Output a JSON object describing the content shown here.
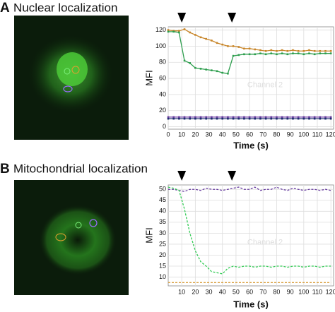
{
  "chart_data": [
    {
      "type": "line",
      "panel": "A",
      "title": "Nuclear localization",
      "xlabel": "Time (s)",
      "ylabel": "MFI",
      "annotation": "Channel 2",
      "x": [
        0,
        4,
        8,
        12,
        16,
        20,
        24,
        28,
        32,
        36,
        40,
        44,
        48,
        52,
        56,
        60,
        64,
        68,
        72,
        76,
        80,
        84,
        88,
        92,
        96,
        100,
        104,
        108,
        112,
        116,
        120
      ],
      "series": [
        {
          "color": "#c8862a",
          "dashed": false,
          "values": [
            120,
            119,
            119,
            121,
            117,
            114,
            111,
            109,
            107,
            104,
            102,
            100,
            100,
            99,
            97,
            97,
            96,
            95,
            94,
            95,
            94,
            95,
            94,
            95,
            94,
            94,
            95,
            94,
            94,
            94,
            94
          ]
        },
        {
          "color": "#2e9e4e",
          "dashed": false,
          "values": [
            118,
            118,
            117,
            82,
            79,
            73,
            72,
            71,
            70,
            69,
            67,
            66,
            88,
            89,
            90,
            90,
            90,
            91,
            90,
            91,
            90,
            91,
            90,
            91,
            91,
            90,
            91,
            90,
            91,
            91,
            91
          ]
        },
        {
          "color": "#6a3fa0",
          "dashed": false,
          "values": [
            12,
            12,
            12,
            12,
            12,
            12,
            12,
            12,
            12,
            12,
            12,
            12,
            12,
            12,
            12,
            12,
            12,
            12,
            12,
            12,
            12,
            12,
            12,
            12,
            12,
            12,
            12,
            12,
            12,
            12,
            12
          ]
        },
        {
          "color": "#1c2a6e",
          "dashed": false,
          "values": [
            10,
            10,
            10,
            10,
            10,
            10,
            10,
            10,
            10,
            10,
            10,
            10,
            10,
            10,
            10,
            10,
            10,
            10,
            10,
            10,
            10,
            10,
            10,
            10,
            10,
            10,
            10,
            10,
            10,
            10,
            10
          ]
        }
      ],
      "markers_x": [
        10,
        47
      ],
      "xlim": [
        0,
        122
      ],
      "ylim": [
        -3,
        124
      ],
      "xticks": [
        0,
        10,
        20,
        30,
        40,
        50,
        60,
        70,
        80,
        90,
        100,
        110,
        120
      ],
      "yticks": [
        0,
        20,
        40,
        60,
        80,
        100,
        120
      ],
      "grid": true
    },
    {
      "type": "line",
      "panel": "B",
      "title": "Mitochondrial localization",
      "xlabel": "Time (s)",
      "ylabel": "MFI",
      "annotation": "Channel 2",
      "x": [
        0,
        4,
        8,
        12,
        16,
        20,
        24,
        28,
        32,
        36,
        40,
        44,
        48,
        52,
        56,
        60,
        64,
        68,
        72,
        76,
        80,
        84,
        88,
        92,
        96,
        100,
        104,
        108,
        112,
        116,
        120
      ],
      "series": [
        {
          "color": "#6a3fa0",
          "dashed": true,
          "values": [
            50,
            50,
            49.5,
            49,
            50,
            50,
            49.5,
            50.5,
            50,
            50,
            49.5,
            50,
            50.5,
            51,
            50,
            50,
            51,
            49.5,
            50,
            50,
            51,
            50,
            49.5,
            50.5,
            50,
            49.5,
            50,
            50,
            49.5,
            50,
            49.5
          ]
        },
        {
          "color": "#33cc55",
          "dashed": true,
          "values": [
            51,
            50.5,
            49.5,
            41,
            30,
            22,
            17,
            15,
            12.5,
            12,
            11.5,
            14,
            15,
            14.5,
            15,
            15,
            14.5,
            15,
            15,
            14.5,
            15,
            15,
            14.5,
            15,
            15,
            14.5,
            15,
            15,
            14.5,
            15,
            15
          ]
        },
        {
          "color": "#d9a040",
          "dashed": true,
          "values": [
            7.5,
            7.5,
            7.5,
            7.5,
            7.5,
            7.5,
            7.5,
            7.5,
            7.5,
            7.5,
            7.5,
            7.5,
            7.5,
            7.5,
            7.5,
            7.5,
            7.5,
            7.5,
            7.5,
            7.5,
            7.5,
            7.5,
            7.5,
            7.5,
            7.5,
            7.5,
            7.5,
            7.5,
            7.5,
            7.5,
            7.5
          ]
        }
      ],
      "markers_x": [
        10,
        47
      ],
      "xlim": [
        0,
        122
      ],
      "ylim": [
        6,
        52
      ],
      "xticks": [
        10,
        20,
        30,
        40,
        50,
        60,
        70,
        80,
        90,
        100,
        110,
        120
      ],
      "yticks": [
        10,
        15,
        20,
        25,
        30,
        35,
        40,
        45,
        50
      ],
      "grid": true
    }
  ]
}
